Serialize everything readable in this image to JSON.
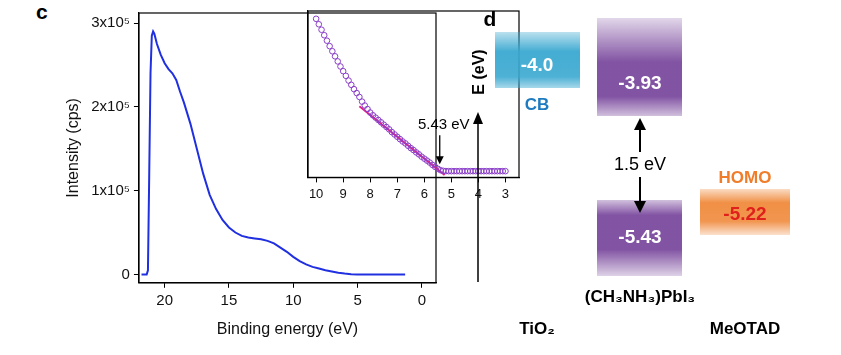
{
  "chart_data": [
    {
      "type": "line",
      "title": "c",
      "x_label": "Binding energy (eV)",
      "y_label": "Intensity (cps)",
      "x": [
        21.8,
        21.4,
        21.3,
        21.2,
        21.1,
        21.0,
        20.9,
        20.8,
        20.6,
        20.3,
        20.0,
        19.7,
        19.4,
        19.1,
        18.8,
        18.5,
        18.0,
        17.5,
        17.0,
        16.5,
        16.0,
        15.5,
        15.0,
        14.5,
        14.0,
        13.5,
        13.0,
        12.5,
        12.0,
        11.5,
        11.0,
        10.5,
        10.0,
        9.5,
        9.0,
        8.5,
        8.0,
        7.5,
        7.0,
        6.5,
        6.0,
        5.5,
        5.0,
        4.0,
        3.0,
        2.0,
        1.3
      ],
      "values": [
        0,
        0,
        5000,
        120000,
        240000,
        285000,
        290000,
        287000,
        275000,
        262000,
        252000,
        245000,
        240000,
        232000,
        218000,
        205000,
        180000,
        150000,
        120000,
        95000,
        78000,
        65000,
        56000,
        50000,
        46000,
        44000,
        43000,
        42000,
        40000,
        37000,
        32000,
        27000,
        21000,
        16000,
        12000,
        9000,
        7000,
        5000,
        3500,
        2000,
        1000,
        300,
        0,
        0,
        0,
        0,
        0
      ],
      "color": "#2030e0",
      "line_style": "solid",
      "marker": "none",
      "xlim": [
        22.0,
        -1.1
      ],
      "xticks": [
        20,
        15,
        10,
        5,
        0
      ],
      "ylim": [
        -10000,
        312000
      ],
      "yticks": [
        0,
        {
          "value": 100000,
          "label": "1x10⁵"
        },
        {
          "value": 200000,
          "label": "2x10⁵"
        },
        {
          "value": 300000,
          "label": "3x10⁵"
        }
      ],
      "grid": false
    },
    {
      "type": "scatter",
      "xlim": [
        10.3,
        2.5
      ],
      "xticks": [
        10,
        9,
        8,
        7,
        6,
        5,
        4,
        3
      ],
      "ylim": [
        -800,
        20500
      ],
      "tick_labels": "x",
      "grid": false,
      "series": [
        {
          "color": "#8a3fc8",
          "marker": "circle",
          "line_style": "none",
          "x": [
            10.0,
            9.9,
            9.8,
            9.7,
            9.6,
            9.5,
            9.4,
            9.3,
            9.2,
            9.1,
            9.0,
            8.9,
            8.8,
            8.7,
            8.6,
            8.5,
            8.4,
            8.3,
            8.2,
            8.1,
            8.0,
            7.9,
            7.8,
            7.7,
            7.6,
            7.5,
            7.4,
            7.3,
            7.2,
            7.1,
            7.0,
            6.9,
            6.8,
            6.7,
            6.6,
            6.5,
            6.4,
            6.3,
            6.2,
            6.1,
            6.0,
            5.9,
            5.8,
            5.7,
            5.6,
            5.5,
            5.4,
            5.3,
            5.2,
            5.1,
            5.0,
            4.9,
            4.8,
            4.7,
            4.6,
            4.5,
            4.4,
            4.3,
            4.2,
            4.1,
            4.0,
            3.9,
            3.8,
            3.7,
            3.6,
            3.5,
            3.4,
            3.3,
            3.2,
            3.1,
            3.0
          ],
          "values": [
            19500,
            18800,
            18100,
            17400,
            16700,
            16000,
            15350,
            14700,
            14050,
            13400,
            12800,
            12200,
            11600,
            11050,
            10500,
            10000,
            9500,
            8900,
            8400,
            7950,
            7500,
            7150,
            6850,
            6550,
            6250,
            5950,
            5650,
            5350,
            5000,
            4700,
            4400,
            4100,
            3800,
            3550,
            3250,
            2950,
            2700,
            2400,
            2150,
            1850,
            1600,
            1350,
            1100,
            800,
            550,
            300,
            120,
            40,
            10,
            0,
            0,
            0,
            0,
            0,
            0,
            0,
            0,
            0,
            0,
            0,
            0,
            0,
            0,
            0,
            0,
            0,
            0,
            0,
            0,
            0,
            0
          ]
        },
        {
          "color": "#e0208a",
          "marker": "none",
          "line_style": "solid",
          "x": [
            8.4,
            5.25
          ],
          "values": [
            8300,
            -500
          ]
        }
      ],
      "annotations": [
        {
          "text": "5.43 eV",
          "x": 5.43
        }
      ]
    }
  ],
  "diagram": {
    "title": "d",
    "axis_label": "E (eV)",
    "materials": [
      {
        "name": "TiO₂",
        "level": "-4.0",
        "level_label": "CB",
        "color": "#3aa8d0"
      },
      {
        "name": "(CH₃NH₃)PbI₃",
        "upper": "-3.93",
        "lower": "-5.43",
        "gap": "1.5 eV",
        "color": "#7b4a9e"
      },
      {
        "name": "MeOTAD",
        "level": "-5.22",
        "level_label": "HOMO",
        "color": "#f08a3c"
      }
    ]
  }
}
